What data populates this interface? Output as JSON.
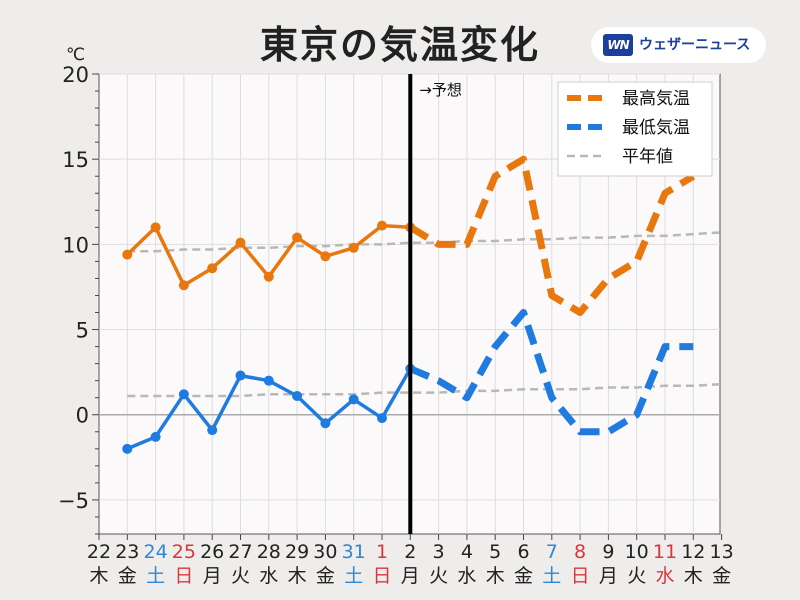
{
  "title": "東京の気温変化",
  "brand": {
    "logo_text": "WN",
    "name": "ウェザーニュース"
  },
  "chart_data": {
    "type": "line",
    "unit": "℃",
    "ylim": [
      -7,
      20
    ],
    "yticks": [
      20,
      15,
      10,
      5,
      0,
      -5
    ],
    "ytick_labels": [
      "20",
      "15",
      "10",
      "5",
      "0",
      "−5"
    ],
    "grid": true,
    "legend_position": "top-right",
    "forecast_annotation": "→予想",
    "forecast_start_index": 10,
    "x_dates": [
      "22",
      "23",
      "24",
      "25",
      "26",
      "27",
      "28",
      "29",
      "30",
      "31",
      "1",
      "2",
      "3",
      "4",
      "5",
      "6",
      "7",
      "8",
      "9",
      "10",
      "11",
      "12",
      "13"
    ],
    "x_weekdays": [
      "木",
      "金",
      "土",
      "日",
      "月",
      "火",
      "水",
      "木",
      "金",
      "土",
      "日",
      "月",
      "火",
      "水",
      "木",
      "金",
      "土",
      "日",
      "月",
      "火",
      "水",
      "木",
      "金"
    ],
    "x_label_colors": [
      "#222222",
      "#222222",
      "#2f86d8",
      "#d9363e",
      "#222222",
      "#222222",
      "#222222",
      "#222222",
      "#222222",
      "#2f86d8",
      "#d9363e",
      "#222222",
      "#222222",
      "#222222",
      "#222222",
      "#222222",
      "#2f86d8",
      "#d9363e",
      "#222222",
      "#222222",
      "#d9363e",
      "#222222",
      "#222222"
    ],
    "series": [
      {
        "name": "最高気温",
        "color": "#e8770e",
        "observed": [
          null,
          9.4,
          11.0,
          7.6,
          8.6,
          10.1,
          8.1,
          10.4,
          9.3,
          9.8,
          11.1,
          11.0
        ],
        "forecast": [
          null,
          null,
          null,
          null,
          null,
          null,
          null,
          null,
          null,
          null,
          null,
          11.0,
          10.0,
          10.0,
          14.0,
          15.0,
          7.0,
          6.0,
          8.0,
          9.0,
          13.0,
          14.0
        ]
      },
      {
        "name": "最低気温",
        "color": "#1f7be0",
        "observed": [
          null,
          -2.0,
          -1.3,
          1.2,
          -0.9,
          2.3,
          2.0,
          1.1,
          -0.5,
          0.9,
          -0.2,
          2.7
        ],
        "forecast": [
          null,
          null,
          null,
          null,
          null,
          null,
          null,
          null,
          null,
          null,
          null,
          2.7,
          2.0,
          1.0,
          4.0,
          6.0,
          1.0,
          -1.0,
          -1.0,
          0.0,
          4.0,
          4.0
        ]
      },
      {
        "name": "平年値",
        "color": "#b8b8b8",
        "normal_high": [
          null,
          9.6,
          9.6,
          9.7,
          9.7,
          9.8,
          9.8,
          9.9,
          9.9,
          10.0,
          10.0,
          10.1,
          10.1,
          10.2,
          10.2,
          10.3,
          10.3,
          10.4,
          10.4,
          10.5,
          10.5,
          10.6,
          10.7
        ],
        "normal_low": [
          null,
          1.1,
          1.1,
          1.1,
          1.1,
          1.1,
          1.2,
          1.2,
          1.2,
          1.2,
          1.3,
          1.3,
          1.3,
          1.4,
          1.4,
          1.5,
          1.5,
          1.5,
          1.6,
          1.6,
          1.7,
          1.7,
          1.8
        ]
      }
    ]
  }
}
